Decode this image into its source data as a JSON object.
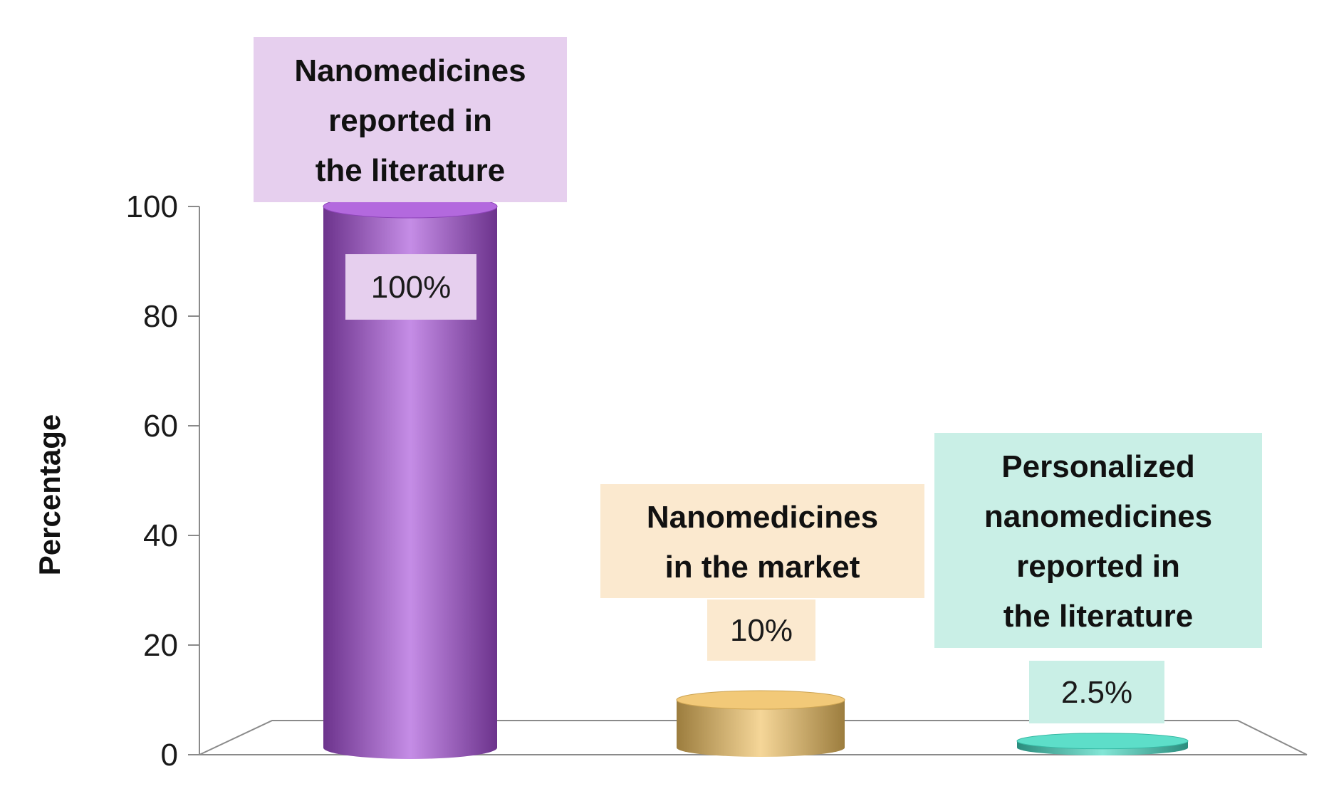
{
  "chart_data": {
    "type": "bar",
    "title": "",
    "xlabel": "",
    "ylabel": "Percentage",
    "ylim": [
      0,
      100
    ],
    "yticks": [
      0,
      20,
      40,
      60,
      80,
      100
    ],
    "grid": false,
    "legend": "none",
    "bar_style": "3d-cylinder",
    "categories": [
      "Nanomedicines reported in the literature",
      "Nanomedicines in the market",
      "Personalized nanomedicines reported in the literature"
    ],
    "category_label_lines": [
      [
        "Nanomedicines",
        "reported in",
        "the literature"
      ],
      [
        "Nanomedicines",
        "in the market"
      ],
      [
        "Personalized",
        "nanomedicines",
        "reported in",
        "the literature"
      ]
    ],
    "values": [
      100,
      10,
      2.5
    ],
    "value_labels": [
      "100%",
      "10%",
      "2.5%"
    ],
    "colors": [
      "#a64fd8",
      "#f0c060",
      "#40d8c0"
    ],
    "label_backgrounds": [
      "#e6cfee",
      "#fbe9cf",
      "#c9efe6"
    ]
  }
}
